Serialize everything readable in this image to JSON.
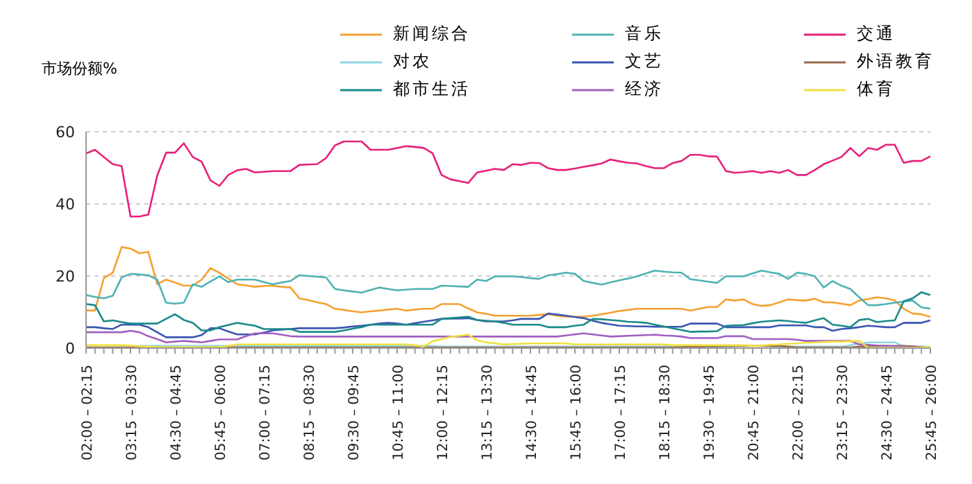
{
  "chart_data": {
    "type": "line",
    "ylabel": "市场份额%",
    "legend": "top right",
    "grid": "y",
    "marker": "none",
    "line_style": "solid",
    "ylim": [
      0,
      60
    ],
    "yticks": [
      0,
      20,
      40,
      60
    ],
    "categories": [
      "02:00 – 02:15",
      null,
      null,
      null,
      null,
      "03:15 – 03:30",
      null,
      null,
      null,
      null,
      "04:30 – 04:45",
      null,
      null,
      null,
      null,
      "05:45 – 06:00",
      null,
      null,
      null,
      null,
      "07:00 – 07:15",
      null,
      null,
      null,
      null,
      "08:15 – 08:30",
      null,
      null,
      null,
      null,
      "09:30 – 09:45",
      null,
      null,
      null,
      null,
      "10:45 – 11:00",
      null,
      null,
      null,
      null,
      "12:00 – 12:15",
      null,
      null,
      null,
      null,
      "13:15 – 13:30",
      null,
      null,
      null,
      null,
      "14:30 – 14:45",
      null,
      null,
      null,
      null,
      "15:45 – 16:00",
      null,
      null,
      null,
      null,
      "17:00 – 17:15",
      null,
      null,
      null,
      null,
      "18:15 – 18:30",
      null,
      null,
      null,
      null,
      "19:30 – 19:45",
      null,
      null,
      null,
      null,
      "20:45 – 21:00",
      null,
      null,
      null,
      null,
      "22:00 – 22:15",
      null,
      null,
      null,
      null,
      "23:15 – 23:30",
      null,
      null,
      null,
      null,
      "24:30 – 24:45",
      null,
      null,
      null,
      null,
      "25:45 – 26:00"
    ],
    "series": [
      {
        "name": "新闻综合",
        "color": "#f5a030",
        "values": [
          10.4,
          10.4,
          19.4,
          20.9,
          28,
          27.6,
          26.3,
          26.7,
          17.7,
          19,
          18.2,
          17.3,
          17.3,
          19,
          22.2,
          20.9,
          19.3,
          17.7,
          17.4,
          17,
          17.2,
          17.3,
          17,
          16.8,
          13.8,
          13.3,
          12.7,
          12.2,
          10.9,
          10.6,
          10.2,
          9.9,
          10.2,
          10.4,
          10.7,
          10.9,
          10.4,
          10.7,
          10.9,
          10.9,
          12.2,
          12.2,
          12.2,
          11,
          9.9,
          9.5,
          9,
          9,
          9,
          9,
          9,
          9.2,
          9.4,
          9,
          8.7,
          8.7,
          8.7,
          9,
          9.4,
          9.8,
          10.3,
          10.6,
          10.9,
          10.9,
          10.9,
          10.9,
          10.9,
          10.9,
          10.4,
          10.9,
          11.4,
          11.4,
          13.5,
          13.2,
          13.5,
          12.2,
          11.7,
          11.9,
          12.7,
          13.5,
          13.3,
          13.2,
          13.7,
          12.7,
          12.7,
          12.3,
          11.9,
          13.2,
          13.6,
          14.1,
          13.8,
          13.2,
          10.9,
          9.6,
          9.4,
          8.6
        ]
      },
      {
        "name": "音乐",
        "color": "#4fb3b3",
        "values": [
          14.7,
          14.2,
          13.8,
          14.5,
          19.6,
          20.6,
          20.4,
          20.2,
          19,
          12.6,
          12.3,
          12.6,
          17.7,
          17,
          18.5,
          19.9,
          18.3,
          19,
          19,
          19,
          18.3,
          17.7,
          18.2,
          18.6,
          20.2,
          20,
          19.8,
          19.6,
          16.4,
          16,
          15.7,
          15.4,
          16.1,
          16.8,
          16.4,
          16,
          16.2,
          16.4,
          16.4,
          16.4,
          17.3,
          17.2,
          17.1,
          17,
          19,
          18.6,
          19.9,
          19.9,
          19.9,
          19.7,
          19.4,
          19.2,
          20.2,
          20.5,
          20.9,
          20.6,
          18.6,
          18.1,
          17.6,
          18.2,
          18.8,
          19.3,
          19.9,
          20.7,
          21.5,
          21.2,
          21,
          20.9,
          19.1,
          18.8,
          18.4,
          18.1,
          19.9,
          19.9,
          19.9,
          20.7,
          21.5,
          21,
          20.6,
          19.2,
          20.9,
          20.6,
          19.9,
          16.8,
          18.6,
          17.3,
          16.4,
          14.1,
          11.9,
          11.9,
          12.2,
          12.6,
          12.9,
          13.2,
          11.3,
          10.9
        ]
      },
      {
        "name": "交通",
        "color": "#e8207a",
        "values": [
          54,
          55,
          53,
          51,
          50.5,
          36.5,
          36.5,
          37,
          47.8,
          54.2,
          54.2,
          56.8,
          53,
          51.7,
          46.5,
          45,
          48,
          49.3,
          49.7,
          48.7,
          48.9,
          49.1,
          49.1,
          49.1,
          50.8,
          50.9,
          51,
          52.7,
          56.2,
          57.3,
          57.3,
          57.3,
          55,
          55,
          55,
          55.5,
          56,
          55.8,
          55.5,
          54,
          48,
          46.8,
          46.3,
          45.8,
          48.7,
          49.2,
          49.7,
          49.4,
          51,
          50.8,
          51.4,
          51.3,
          49.9,
          49.4,
          49.4,
          49.8,
          50.3,
          50.7,
          51.2,
          52.3,
          51.8,
          51.4,
          51.2,
          50.5,
          49.9,
          49.9,
          51.3,
          51.9,
          53.6,
          53.6,
          53.2,
          53.1,
          49.1,
          48.6,
          48.8,
          49.1,
          48.6,
          49.1,
          48.6,
          49.4,
          48,
          48,
          49.4,
          51,
          52,
          53,
          55.5,
          53.2,
          55.5,
          55,
          56.4,
          56.4,
          51.4,
          51.9,
          51.9,
          53.2
        ]
      },
      {
        "name": "对农",
        "color": "#90d8e8",
        "values": [
          null,
          null,
          null,
          null,
          null,
          null,
          0.6,
          0.6,
          0.6,
          0.6,
          0.6,
          0.6,
          0.6,
          0.6,
          0.6,
          0.6,
          0.6,
          0.6,
          0.6,
          0.6,
          0.6,
          0.6,
          0.6,
          0.6,
          0.6,
          0.6,
          0.6,
          0.6,
          0.6,
          0.6,
          0.6,
          0.6,
          0.6,
          0.6,
          0.6,
          0.6,
          0.6,
          0.6,
          0.6,
          0.6,
          0.4,
          0.4,
          0.4,
          0.4,
          0.4,
          0.4,
          0.4,
          0.4,
          0.4,
          0.4,
          0.4,
          0.4,
          0.4,
          0.4,
          0.4,
          0.4,
          0.4,
          0.4,
          0.4,
          0.4,
          0.4,
          0.4,
          0.4,
          0.4,
          0.4,
          0.4,
          0.4,
          0.4,
          0.4,
          0.4,
          0.4,
          0.4,
          0.4,
          0.4,
          null,
          null,
          null,
          0.4,
          0.4,
          0.4,
          0.4,
          0.4,
          0.4,
          0.4,
          0.4,
          0.4,
          0.8,
          1.2,
          1.6,
          1.6,
          1.6,
          1.6,
          0.4,
          0.4,
          0.4,
          0.4
        ]
      },
      {
        "name": "文艺",
        "color": "#3a55b0",
        "values": [
          5.8,
          5.8,
          5.5,
          5.3,
          6.5,
          6.5,
          6.5,
          5.8,
          4.4,
          3,
          3,
          3,
          3,
          3.6,
          5.5,
          5.5,
          4.6,
          3.8,
          3.8,
          3.8,
          4.3,
          4.9,
          5.1,
          5.3,
          5.5,
          5.5,
          5.5,
          5.5,
          5.5,
          5.7,
          6,
          6.2,
          6.5,
          6.8,
          7,
          6.8,
          6.5,
          6.9,
          7.3,
          7.7,
          8.1,
          8.2,
          8.2,
          8.3,
          7.8,
          7.4,
          7.4,
          7.4,
          7.7,
          8.1,
          8.1,
          8.1,
          9.6,
          9.3,
          9,
          8.6,
          8.3,
          7.6,
          7,
          6.6,
          6.2,
          6.1,
          6,
          6,
          5.9,
          5.9,
          5.9,
          5.9,
          6.8,
          6.8,
          6.8,
          6.8,
          5.8,
          5.8,
          5.8,
          5.8,
          5.8,
          5.8,
          6.3,
          6.3,
          6.3,
          6.3,
          5.8,
          5.8,
          4.8,
          5.3,
          5.5,
          5.8,
          6.2,
          6,
          5.8,
          5.8,
          7,
          7,
          7,
          7.7
        ]
      },
      {
        "name": "外语教育",
        "color": "#9a6a50",
        "values": [
          0.2,
          0.2,
          0.2,
          0.2,
          0.2,
          0.2,
          0.2,
          0.2,
          0.2,
          0.2,
          0.2,
          0.2,
          0.2,
          0.2,
          0.2,
          0.2,
          0.2,
          0.2,
          0.2,
          0.2,
          0.2,
          0.2,
          0.2,
          0.2,
          0.2,
          0.2,
          0.2,
          0.2,
          0.2,
          0.2,
          0.2,
          0.2,
          0.2,
          0.2,
          0.2,
          0.2,
          0.2,
          0.2,
          0.2,
          0.2,
          0.2,
          0.2,
          0.2,
          0.2,
          0.2,
          0.2,
          0.2,
          0.2,
          0.2,
          0.2,
          0.2,
          0.2,
          0.2,
          0.2,
          0.2,
          0.2,
          0.2,
          0.2,
          0.2,
          0.2,
          0.2,
          0.2,
          0.2,
          0.2,
          0.2,
          0.2,
          0.2,
          0.3,
          0.4,
          0.4,
          0.5,
          0.5,
          0.6,
          0.6,
          0.6,
          0.6,
          0.6,
          0.6,
          0.6,
          0.4,
          0.2,
          0.2,
          0.2,
          0.2,
          0.2,
          0.2,
          0.2,
          0.4,
          0.5,
          0.6,
          0.6,
          0.6,
          0.6,
          0.5,
          0.3,
          0.2
        ]
      },
      {
        "name": "都市生活",
        "color": "#1a8a8a",
        "values": [
          12.2,
          11.9,
          7.4,
          7.7,
          7.2,
          6.8,
          6.8,
          6.8,
          6.8,
          8.1,
          9.4,
          7.8,
          7,
          4.9,
          4.9,
          5.8,
          6.4,
          7,
          6.6,
          6.2,
          5.3,
          5.3,
          5.3,
          5.3,
          4.5,
          4.5,
          4.5,
          4.5,
          4.5,
          4.9,
          5.4,
          5.8,
          6.5,
          6.5,
          6.5,
          6.5,
          6.5,
          6.5,
          6.5,
          6.5,
          8.1,
          8.3,
          8.5,
          8.7,
          7.8,
          7.6,
          7.4,
          7,
          6.5,
          6.5,
          6.5,
          6.5,
          5.8,
          5.8,
          5.8,
          6.2,
          6.5,
          8.1,
          8,
          7.8,
          7.6,
          7.3,
          7.2,
          7,
          6.5,
          6,
          5.5,
          5,
          4.5,
          4.6,
          4.6,
          4.7,
          6.2,
          6.3,
          6.4,
          6.9,
          7.3,
          7.5,
          7.7,
          7.5,
          7.2,
          7,
          7.7,
          8.3,
          6.5,
          6.2,
          5.8,
          7.8,
          8.1,
          7.2,
          7.5,
          7.7,
          13,
          13.8,
          15.5,
          14.7
        ]
      },
      {
        "name": "经济",
        "color": "#a060c0",
        "values": [
          4.4,
          4.4,
          4.4,
          4.4,
          4.4,
          4.8,
          4.4,
          3.3,
          2.5,
          1.6,
          1.8,
          2,
          1.8,
          1.6,
          2,
          2.4,
          2.4,
          2.4,
          3.3,
          4.1,
          4.1,
          4.1,
          3.7,
          3.3,
          3.2,
          3.2,
          3.2,
          3.2,
          3.2,
          3.2,
          3.2,
          3.2,
          3.2,
          3.2,
          3.2,
          3.2,
          3.2,
          3.2,
          3.2,
          3.2,
          3.2,
          3.2,
          3.2,
          3.2,
          3.2,
          3.2,
          3.2,
          3.2,
          3.2,
          3.2,
          3.2,
          3.2,
          3.2,
          3.2,
          3.5,
          3.8,
          4.1,
          3.8,
          3.5,
          3.2,
          3.3,
          3.4,
          3.5,
          3.6,
          3.7,
          3.5,
          3.4,
          3.2,
          2.8,
          2.8,
          2.8,
          2.8,
          3.3,
          3.3,
          3.3,
          2.5,
          2.5,
          2.5,
          2.5,
          2.5,
          2.3,
          2,
          2,
          2,
          2,
          2,
          2,
          1,
          0.9,
          0.7,
          0.6,
          0.5,
          0.4,
          0.3,
          0.2,
          0.1
        ]
      },
      {
        "name": "体育",
        "color": "#f0e040",
        "values": [
          0.8,
          0.8,
          0.8,
          0.8,
          0.8,
          0.7,
          0.5,
          0.4,
          0.3,
          0.3,
          0.3,
          0.3,
          0.3,
          0.3,
          0.3,
          0.3,
          0.6,
          1,
          1,
          1,
          1,
          1,
          1,
          1,
          1,
          1,
          1,
          1,
          1,
          1,
          1,
          1,
          1,
          1,
          1,
          1,
          1,
          0.8,
          0.4,
          1.9,
          2.5,
          3.1,
          3.4,
          3.7,
          2.2,
          1.6,
          1.3,
          1,
          1.1,
          1.2,
          1.3,
          1.3,
          1.3,
          1.3,
          1.3,
          1,
          1,
          1,
          1,
          1,
          1,
          1,
          1,
          1,
          1,
          1,
          0.8,
          0.8,
          0.8,
          0.8,
          0.8,
          0.8,
          0.8,
          0.8,
          0.8,
          0.6,
          0.7,
          0.9,
          1,
          1.2,
          1.3,
          1.5,
          1.6,
          1.7,
          1.8,
          1.8,
          1.9,
          2,
          0.1,
          0.1,
          0.1,
          0.1,
          0.1,
          0.1,
          0.2,
          0.4
        ]
      }
    ]
  }
}
